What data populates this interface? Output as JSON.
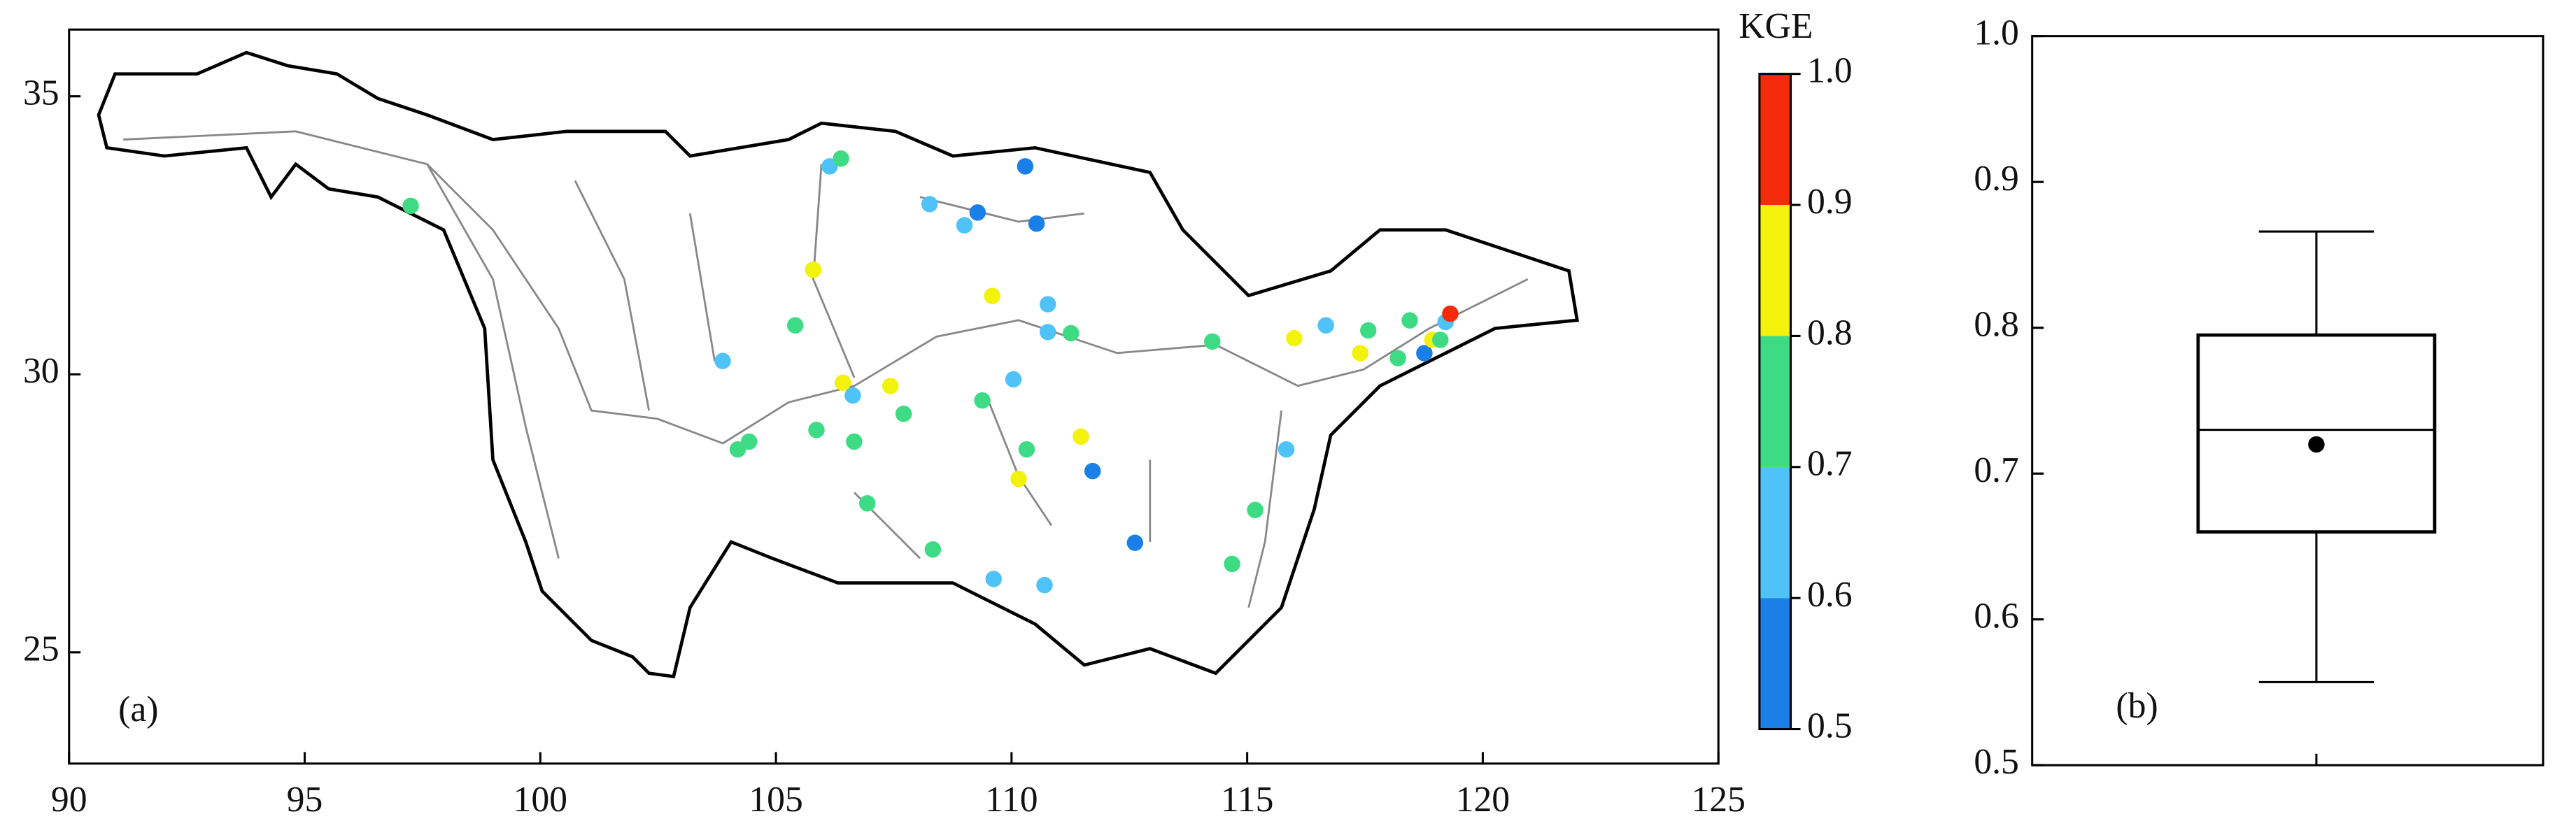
{
  "chart_data": [
    {
      "type": "scatter",
      "annotation": "(a)",
      "xlim": [
        90,
        125
      ],
      "ylim": [
        23,
        36.2
      ],
      "xticks": [
        90,
        95,
        100,
        105,
        110,
        115,
        120,
        125
      ],
      "yticks": [
        25,
        30,
        35
      ],
      "x": [
        97.25,
        106.14,
        106.38,
        110.29,
        108.26,
        109.28,
        109.0,
        110.53,
        105.79,
        109.59,
        110.77,
        105.41,
        110.77,
        111.26,
        103.87,
        106.42,
        106.63,
        107.43,
        110.04,
        109.38,
        107.71,
        105.86,
        106.66,
        104.43,
        104.19,
        110.32,
        111.47,
        111.72,
        110.15,
        106.94,
        108.33,
        109.62,
        110.7,
        112.62,
        114.26,
        115.83,
        115.17,
        114.68,
        116.0,
        116.67,
        117.57,
        117.4,
        118.2,
        118.45,
        118.76,
        118.93,
        119.1,
        119.21,
        119.31
      ],
      "y": [
        33.03,
        33.74,
        33.88,
        33.74,
        33.06,
        32.91,
        32.68,
        32.71,
        31.88,
        31.41,
        31.26,
        30.88,
        30.76,
        30.74,
        30.24,
        29.85,
        29.62,
        29.79,
        29.91,
        29.53,
        29.29,
        29.0,
        28.79,
        28.79,
        28.65,
        28.65,
        28.88,
        28.26,
        28.12,
        27.68,
        26.85,
        26.32,
        26.21,
        26.97,
        30.59,
        28.65,
        27.56,
        26.59,
        30.65,
        30.88,
        30.79,
        30.38,
        30.29,
        30.97,
        30.38,
        30.62,
        30.62,
        30.94,
        31.09
      ],
      "values": [
        0.75,
        0.65,
        0.75,
        0.55,
        0.65,
        0.55,
        0.65,
        0.55,
        0.85,
        0.85,
        0.65,
        0.75,
        0.65,
        0.75,
        0.65,
        0.85,
        0.65,
        0.85,
        0.65,
        0.75,
        0.75,
        0.75,
        0.75,
        0.75,
        0.75,
        0.75,
        0.85,
        0.55,
        0.85,
        0.75,
        0.75,
        0.65,
        0.65,
        0.55,
        0.75,
        0.65,
        0.75,
        0.75,
        0.85,
        0.65,
        0.75,
        0.85,
        0.75,
        0.75,
        0.55,
        0.85,
        0.75,
        0.65,
        0.95
      ],
      "colorbar": {
        "label": "KGE",
        "bounds": [
          0.5,
          0.6,
          0.7,
          0.8,
          0.9,
          1.0
        ],
        "colors": [
          "#1a7fe6",
          "#4fc3f7",
          "#3ddc84",
          "#f2f20a",
          "#f52a0a"
        ],
        "ticks": [
          0.5,
          0.6,
          0.7,
          0.8,
          0.9,
          {
            "value": 1.0,
            "label": "1.0"
          }
        ]
      }
    },
    {
      "type": "box",
      "annotation": "(b)",
      "ylim": [
        0.5,
        1.0
      ],
      "yticks": [
        0.5,
        0.6,
        0.7,
        0.8,
        0.9,
        {
          "value": 1.0,
          "label": "1.0"
        }
      ],
      "whisker_low": 0.557,
      "q1": 0.66,
      "median": 0.73,
      "q3": 0.795,
      "whisker_high": 0.866,
      "mean": 0.72
    }
  ]
}
